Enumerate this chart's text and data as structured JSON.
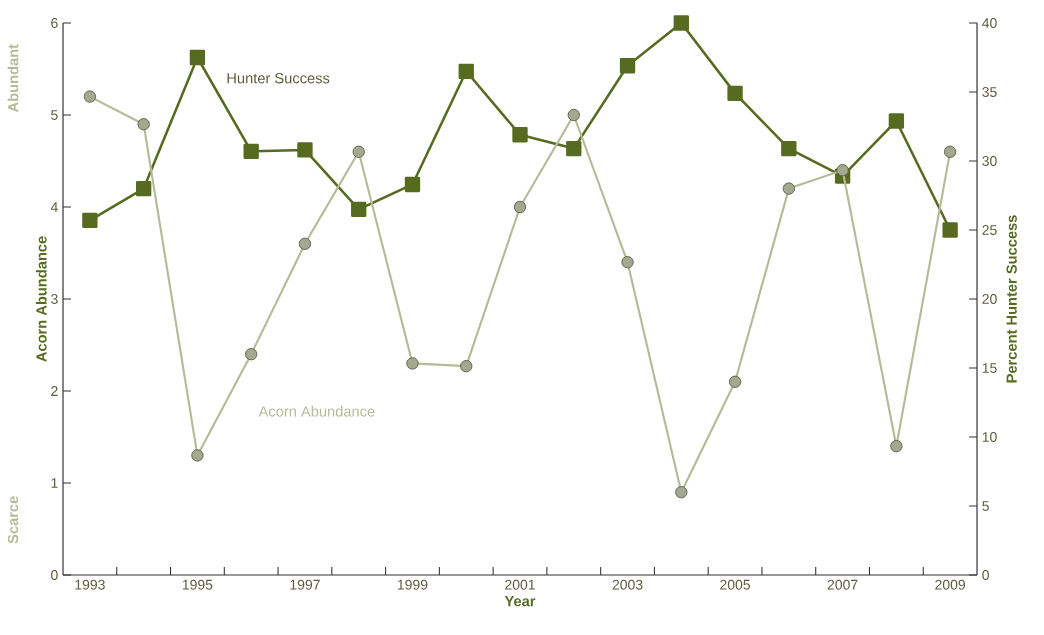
{
  "chart_data": {
    "type": "line",
    "x": [
      1993,
      1994,
      1995,
      1996,
      1997,
      1998,
      1999,
      2000,
      2001,
      2002,
      2003,
      2004,
      2005,
      2006,
      2007,
      2008,
      2009
    ],
    "series": [
      {
        "name": "Acorn Abundance",
        "color": "#b3bb98",
        "marker": "circle",
        "values": [
          5.2,
          4.9,
          1.3,
          2.4,
          3.6,
          4.6,
          2.3,
          2.27,
          4.0,
          5.0,
          3.4,
          0.9,
          2.1,
          4.2,
          4.4,
          1.4,
          4.6
        ]
      },
      {
        "name": "Hunter Success",
        "color": "#566b1f",
        "marker": "square",
        "axis": "y2",
        "values": [
          25.7,
          28.0,
          37.5,
          30.7,
          30.8,
          26.5,
          28.3,
          36.5,
          31.9,
          30.9,
          36.9,
          40.0,
          34.9,
          30.9,
          28.9,
          32.9,
          25.0
        ]
      }
    ],
    "xlabel": "Year",
    "ylabel": "Acorn Abundance",
    "y2label": "Percent Hunter Success",
    "annotations": [
      "Abundant",
      "Scarce"
    ],
    "xlim": [
      1992.5,
      2009.5
    ],
    "xticks": [
      1993,
      {
        "value": 1993.5,
        "label": null
      },
      {
        "value": 1994.5,
        "label": null
      },
      1995,
      {
        "value": 1995.5,
        "label": null
      },
      {
        "value": 1996.5,
        "label": null
      },
      1997,
      {
        "value": 1997.5,
        "label": null
      },
      {
        "value": 1998.5,
        "label": null
      },
      1999,
      {
        "value": 1999.5,
        "label": null
      },
      {
        "value": 2000.5,
        "label": null
      },
      2001,
      {
        "value": 2001.5,
        "label": null
      },
      {
        "value": 2002.5,
        "label": null
      },
      2003,
      {
        "value": 2003.5,
        "label": null
      },
      {
        "value": 2004.5,
        "label": null
      },
      2005,
      {
        "value": 2005.5,
        "label": null
      },
      {
        "value": 2006.5,
        "label": null
      },
      2007,
      {
        "value": 2007.5,
        "label": null
      },
      {
        "value": 2008.5,
        "label": null
      },
      2009
    ],
    "ylim": [
      0,
      6
    ],
    "yticks": [
      0,
      1,
      2,
      3,
      4,
      5,
      6
    ],
    "y2lim": [
      0,
      40
    ],
    "y2ticks": [
      0,
      5,
      10,
      15,
      20,
      25,
      30,
      35,
      40
    ],
    "grid": false,
    "legend": false
  }
}
